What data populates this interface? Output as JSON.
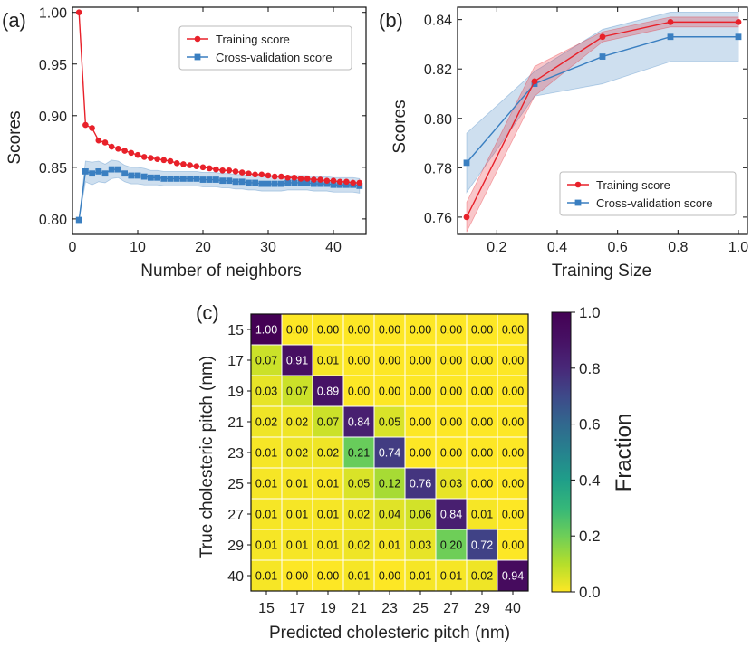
{
  "chart_data": [
    {
      "panel": "(a)",
      "type": "line",
      "xlabel": "Number of neighbors",
      "ylabel": "Scores",
      "xlim": [
        0,
        45
      ],
      "ylim": [
        0.785,
        1.005
      ],
      "xticks": [
        "0",
        "10",
        "20",
        "30",
        "40"
      ],
      "yticks": [
        "0.80",
        "0.85",
        "0.90",
        "0.95",
        "1.00"
      ],
      "legend": "top-right",
      "x": [
        1,
        2,
        3,
        4,
        5,
        6,
        7,
        8,
        9,
        10,
        11,
        12,
        13,
        14,
        15,
        16,
        17,
        18,
        19,
        20,
        21,
        22,
        23,
        24,
        25,
        26,
        27,
        28,
        29,
        30,
        31,
        32,
        33,
        34,
        35,
        36,
        37,
        38,
        39,
        40,
        41,
        42,
        43,
        44
      ],
      "series": [
        {
          "name": "Training score",
          "color": "#e8212a",
          "marker": "circle",
          "values": [
            1.0,
            0.891,
            0.888,
            0.876,
            0.874,
            0.87,
            0.868,
            0.866,
            0.864,
            0.862,
            0.86,
            0.859,
            0.858,
            0.857,
            0.856,
            0.854,
            0.853,
            0.852,
            0.851,
            0.85,
            0.849,
            0.848,
            0.847,
            0.847,
            0.846,
            0.845,
            0.844,
            0.843,
            0.843,
            0.842,
            0.841,
            0.841,
            0.84,
            0.84,
            0.839,
            0.839,
            0.838,
            0.838,
            0.837,
            0.837,
            0.836,
            0.836,
            0.835,
            0.835
          ],
          "band": []
        },
        {
          "name": "Cross-validation score",
          "color": "#3a7fc1",
          "marker": "square",
          "values": [
            0.799,
            0.846,
            0.844,
            0.846,
            0.844,
            0.848,
            0.848,
            0.844,
            0.842,
            0.842,
            0.841,
            0.84,
            0.84,
            0.839,
            0.839,
            0.839,
            0.839,
            0.839,
            0.839,
            0.838,
            0.838,
            0.838,
            0.837,
            0.837,
            0.836,
            0.836,
            0.835,
            0.835,
            0.834,
            0.834,
            0.834,
            0.834,
            0.835,
            0.835,
            0.835,
            0.835,
            0.834,
            0.834,
            0.834,
            0.833,
            0.833,
            0.833,
            0.833,
            0.832
          ],
          "band": [
            0.0,
            0.01,
            0.011,
            0.01,
            0.009,
            0.009,
            0.008,
            0.008,
            0.008,
            0.008,
            0.008,
            0.007,
            0.007,
            0.007,
            0.007,
            0.007,
            0.007,
            0.007,
            0.007,
            0.007,
            0.007,
            0.007,
            0.007,
            0.007,
            0.007,
            0.007,
            0.007,
            0.007,
            0.007,
            0.007,
            0.007,
            0.007,
            0.007,
            0.007,
            0.007,
            0.007,
            0.007,
            0.007,
            0.007,
            0.007,
            0.007,
            0.007,
            0.007,
            0.007
          ]
        }
      ]
    },
    {
      "panel": "(b)",
      "type": "line",
      "xlabel": "Training Size",
      "ylabel": "Scores",
      "xlim": [
        0.07,
        1.03
      ],
      "ylim": [
        0.753,
        0.845
      ],
      "xticks": [
        "0.2",
        "0.4",
        "0.6",
        "0.8",
        "1.0"
      ],
      "yticks": [
        "0.76",
        "0.78",
        "0.80",
        "0.82",
        "0.84"
      ],
      "legend": "bottom-right",
      "x": [
        0.1,
        0.325,
        0.55,
        0.775,
        1.0
      ],
      "series": [
        {
          "name": "Training score",
          "color": "#e8212a",
          "marker": "circle",
          "values": [
            0.76,
            0.815,
            0.833,
            0.839,
            0.839
          ],
          "band": [
            0.006,
            0.006,
            0.002,
            0.002,
            0.002
          ]
        },
        {
          "name": "Cross-validation score",
          "color": "#3a7fc1",
          "marker": "square",
          "values": [
            0.782,
            0.814,
            0.825,
            0.833,
            0.833
          ],
          "band": [
            0.012,
            0.005,
            0.011,
            0.01,
            0.01
          ]
        }
      ]
    },
    {
      "panel": "(c)",
      "type": "heatmap",
      "xlabel": "Predicted cholesteric pitch (nm)",
      "ylabel": "True cholesteric pitch (nm)",
      "labels": [
        "15",
        "17",
        "19",
        "21",
        "23",
        "25",
        "27",
        "29",
        "40"
      ],
      "values": [
        [
          "1.00",
          "0.00",
          "0.00",
          "0.00",
          "0.00",
          "0.00",
          "0.00",
          "0.00",
          "0.00"
        ],
        [
          "0.07",
          "0.91",
          "0.01",
          "0.00",
          "0.00",
          "0.00",
          "0.00",
          "0.00",
          "0.00"
        ],
        [
          "0.03",
          "0.07",
          "0.89",
          "0.00",
          "0.00",
          "0.00",
          "0.00",
          "0.00",
          "0.00"
        ],
        [
          "0.02",
          "0.02",
          "0.07",
          "0.84",
          "0.05",
          "0.00",
          "0.00",
          "0.00",
          "0.00"
        ],
        [
          "0.01",
          "0.02",
          "0.02",
          "0.21",
          "0.74",
          "0.00",
          "0.00",
          "0.00",
          "0.00"
        ],
        [
          "0.01",
          "0.01",
          "0.01",
          "0.05",
          "0.12",
          "0.76",
          "0.03",
          "0.00",
          "0.00"
        ],
        [
          "0.01",
          "0.01",
          "0.01",
          "0.02",
          "0.04",
          "0.06",
          "0.84",
          "0.01",
          "0.00"
        ],
        [
          "0.01",
          "0.01",
          "0.01",
          "0.02",
          "0.01",
          "0.03",
          "0.20",
          "0.72",
          "0.00"
        ],
        [
          "0.01",
          "0.00",
          "0.00",
          "0.01",
          "0.00",
          "0.01",
          "0.01",
          "0.02",
          "0.94"
        ]
      ],
      "colorbar": {
        "label": "Fraction",
        "range": [
          0,
          1
        ],
        "ticks": [
          "0.0",
          "0.2",
          "0.4",
          "0.6",
          "0.8",
          "1.0"
        ],
        "colormap": "viridis_r"
      }
    }
  ]
}
